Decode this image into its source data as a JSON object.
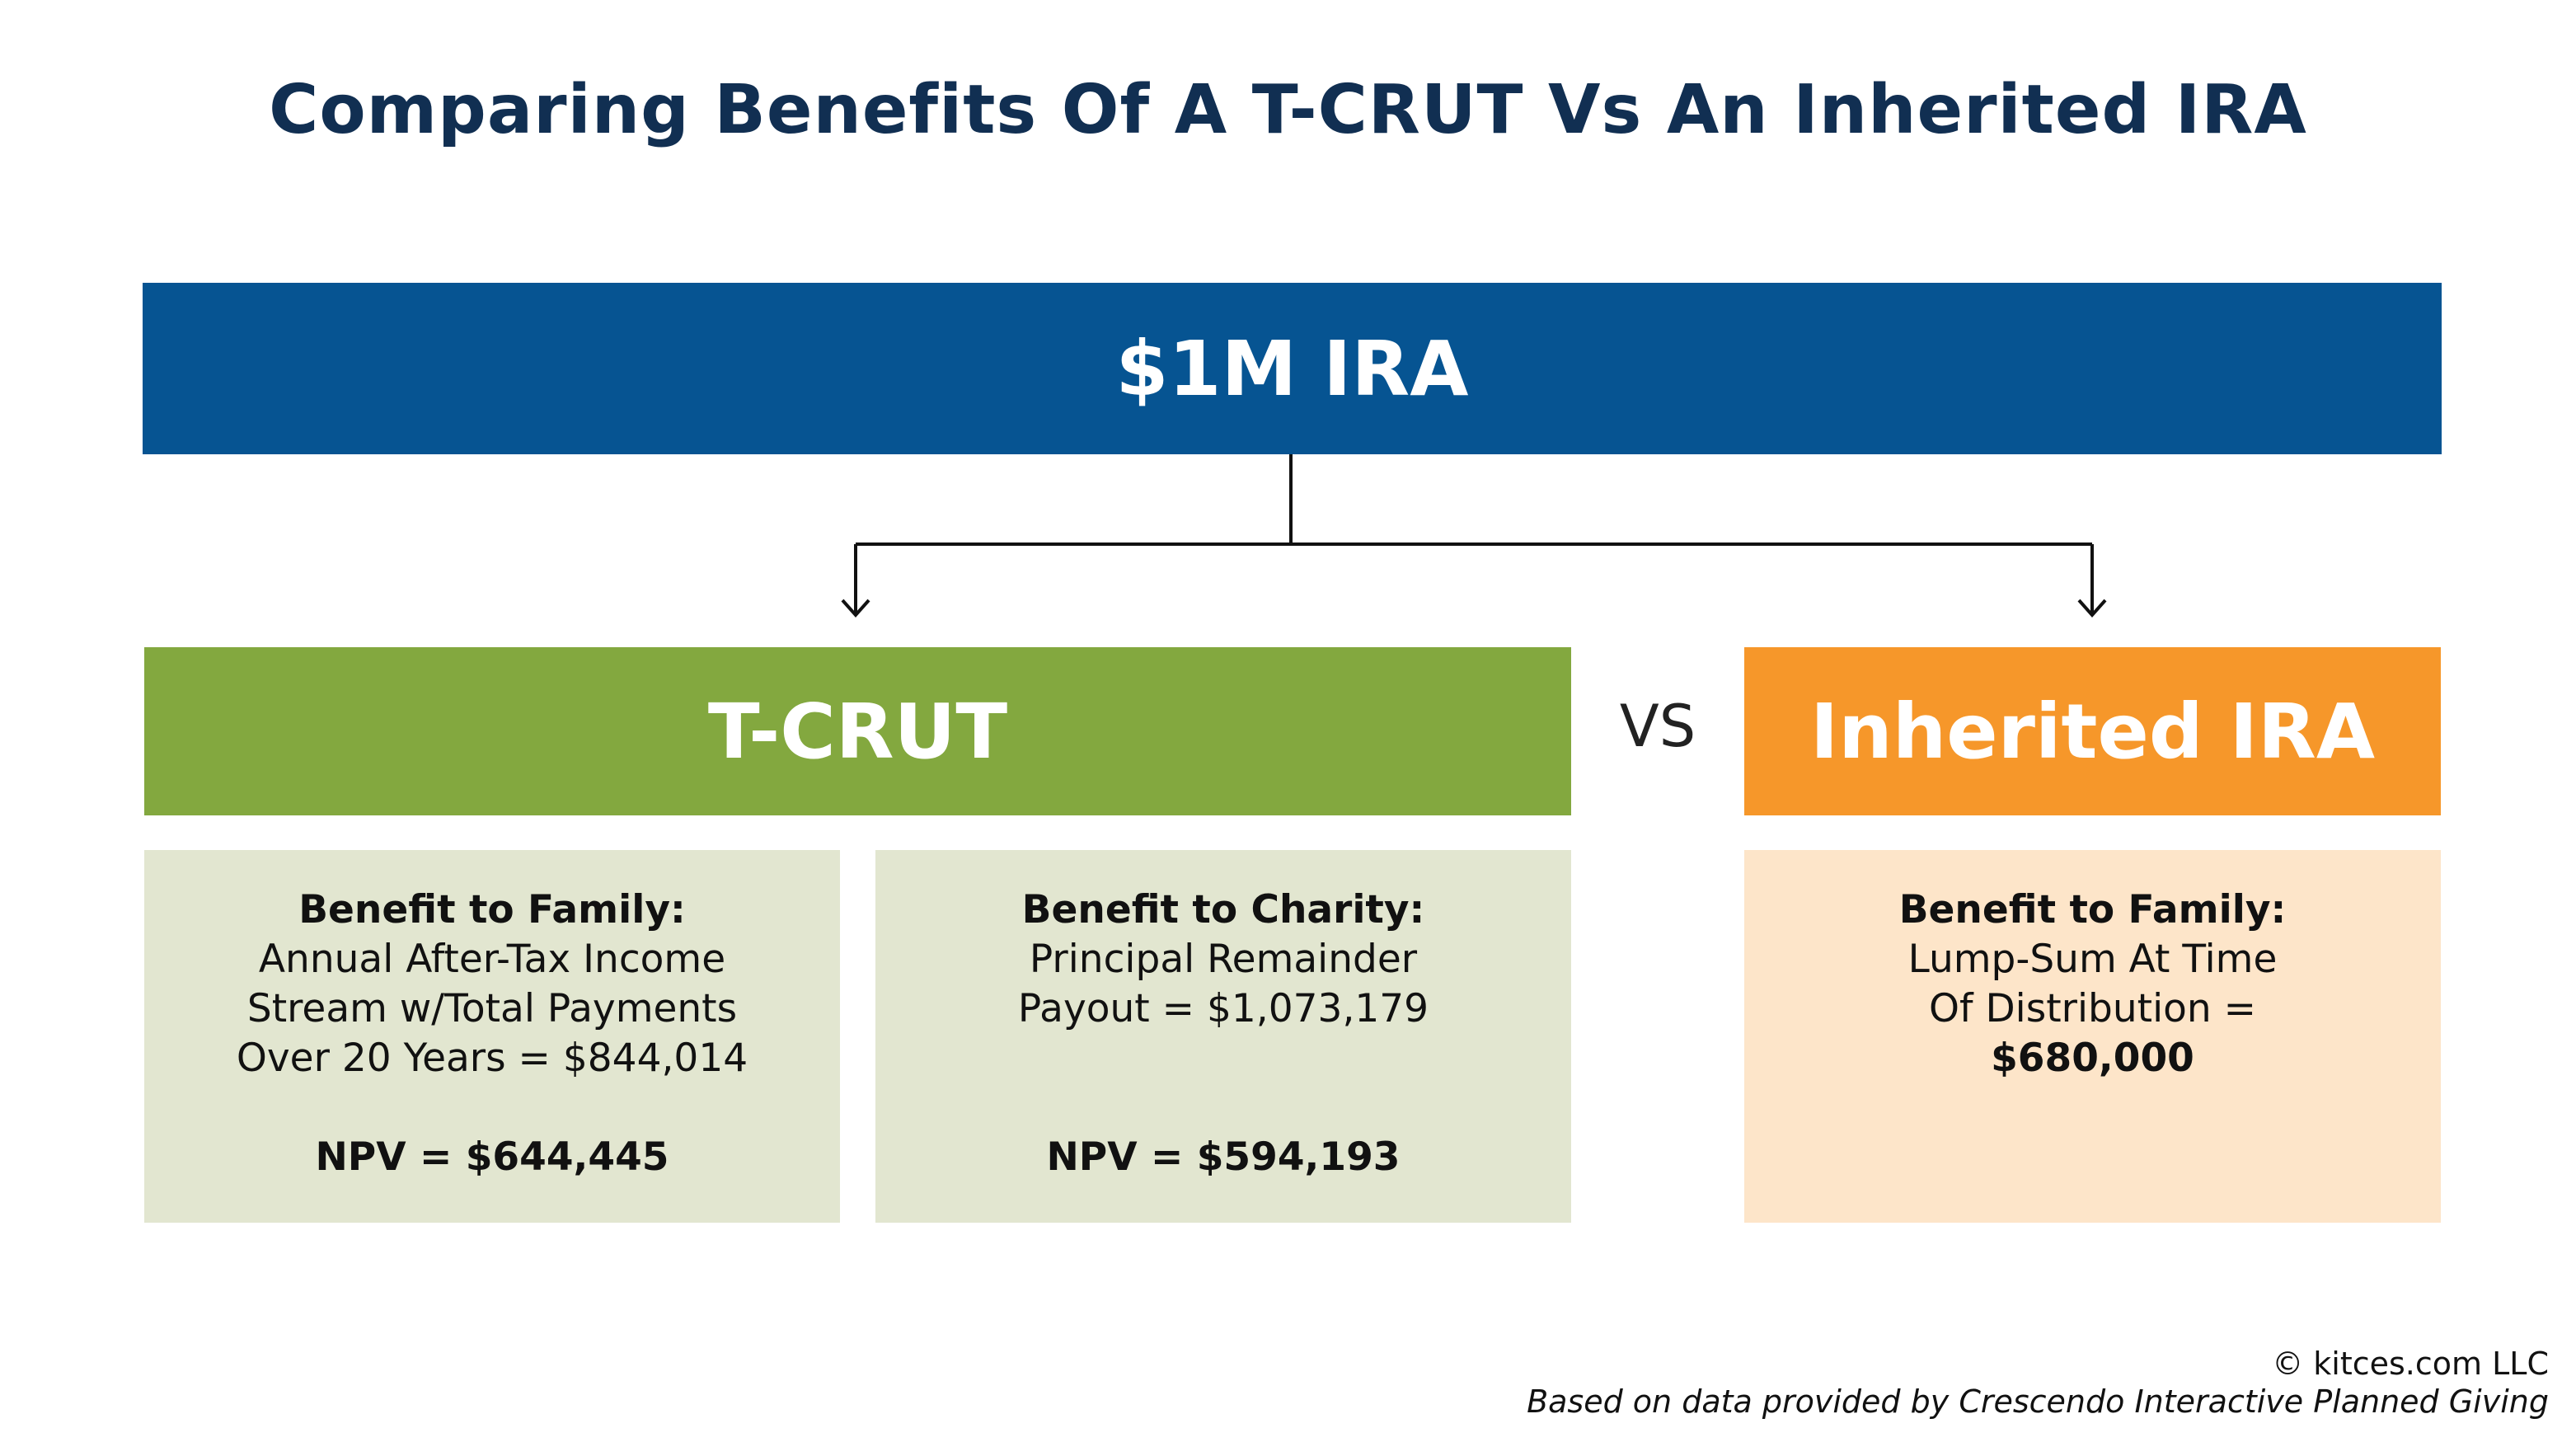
{
  "title": "Comparing Benefits Of A T-CRUT Vs An Inherited IRA",
  "root": {
    "label": "$1M IRA"
  },
  "left_option": {
    "label": "T-CRUT",
    "panels": [
      {
        "heading": "Benefit to Family:",
        "lines": [
          "Annual After-Tax Income",
          "Stream w/Total Payments",
          "Over 20 Years = $844,014"
        ],
        "npv": "NPV = $644,445"
      },
      {
        "heading": "Benefit to Charity:",
        "lines": [
          "Principal Remainder",
          "Payout = $1,073,179"
        ],
        "npv": "NPV = $594,193"
      }
    ]
  },
  "versus": "VS",
  "right_option": {
    "label": "Inherited IRA",
    "panel": {
      "heading": "Benefit to Family:",
      "lines": [
        "Lump-Sum At Time",
        "Of Distribution ="
      ],
      "value": "$680,000"
    }
  },
  "colors": {
    "title": "#112f52",
    "root": "#065492",
    "tcrut": "#83a83f",
    "inherited_ira": "#f6972a",
    "tcrut_panel": "#e2e6d0",
    "ira_panel": "#fde5c9"
  },
  "footer": {
    "copyright": "© kitces.com LLC",
    "source": "Based on data provided by Crescendo Interactive Planned Giving"
  }
}
